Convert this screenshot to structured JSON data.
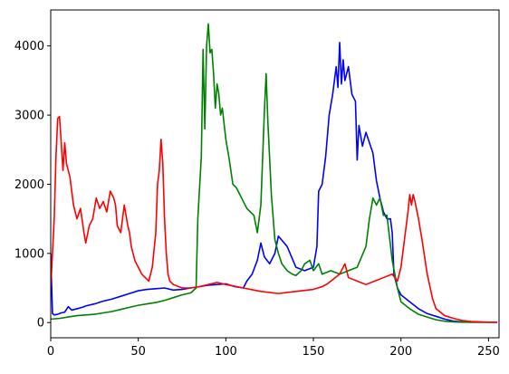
{
  "chart_data": {
    "type": "line",
    "title": "",
    "xlabel": "",
    "ylabel": "",
    "xlim": [
      0,
      256
    ],
    "ylim": [
      -220,
      4520
    ],
    "grid": false,
    "legend": "none",
    "xticks": [
      0,
      50,
      100,
      150,
      200,
      250
    ],
    "yticks": [
      0,
      1000,
      2000,
      3000,
      4000
    ],
    "series": [
      {
        "color": "#0000ff",
        "x": [
          0,
          1,
          2,
          4,
          6,
          8,
          10,
          12,
          15,
          18,
          20,
          25,
          30,
          35,
          40,
          45,
          50,
          55,
          60,
          65,
          70,
          75,
          80,
          85,
          90,
          95,
          100,
          105,
          110,
          112,
          115,
          118,
          120,
          122,
          125,
          128,
          130,
          135,
          140,
          145,
          150,
          152,
          153,
          155,
          157,
          159,
          161,
          163,
          164,
          165,
          166,
          167,
          168,
          170,
          172,
          174,
          175,
          176,
          178,
          180,
          182,
          184,
          186,
          188,
          190,
          192,
          194,
          195,
          196,
          198,
          200,
          205,
          210,
          215,
          220,
          225,
          230,
          235,
          240,
          245,
          250,
          255
        ],
        "y": [
          1000,
          130,
          110,
          120,
          140,
          150,
          230,
          180,
          200,
          220,
          240,
          270,
          310,
          340,
          380,
          420,
          460,
          480,
          490,
          500,
          470,
          480,
          500,
          520,
          540,
          550,
          560,
          520,
          500,
          600,
          700,
          900,
          1150,
          950,
          850,
          1000,
          1250,
          1100,
          800,
          750,
          800,
          1100,
          1900,
          2000,
          2400,
          3000,
          3300,
          3700,
          3400,
          4050,
          3450,
          3800,
          3500,
          3700,
          3300,
          3200,
          2350,
          2850,
          2550,
          2750,
          2600,
          2450,
          2050,
          1800,
          1600,
          1500,
          1500,
          1300,
          700,
          500,
          400,
          300,
          200,
          130,
          90,
          50,
          20,
          10,
          5,
          5,
          5,
          5
        ]
      },
      {
        "color": "#008000",
        "x": [
          0,
          5,
          10,
          15,
          20,
          25,
          30,
          35,
          40,
          45,
          50,
          55,
          60,
          65,
          70,
          75,
          80,
          83,
          84,
          86,
          87,
          88,
          89,
          90,
          91,
          92,
          93,
          94,
          95,
          96,
          97,
          98,
          100,
          102,
          104,
          106,
          108,
          110,
          112,
          114,
          116,
          118,
          120,
          122,
          123,
          124,
          126,
          128,
          130,
          132,
          135,
          138,
          140,
          143,
          145,
          148,
          150,
          153,
          155,
          160,
          165,
          170,
          175,
          180,
          182,
          184,
          186,
          188,
          190,
          192,
          195,
          198,
          200,
          205,
          210,
          215,
          220,
          225,
          230,
          235,
          240,
          245,
          250,
          255
        ],
        "y": [
          50,
          60,
          80,
          100,
          110,
          120,
          140,
          160,
          190,
          220,
          250,
          270,
          290,
          320,
          360,
          400,
          430,
          500,
          1500,
          2400,
          3950,
          2800,
          4000,
          4320,
          3900,
          3950,
          3600,
          3100,
          3450,
          3300,
          3000,
          3100,
          2650,
          2350,
          2000,
          1950,
          1850,
          1750,
          1650,
          1600,
          1550,
          1300,
          1700,
          3050,
          3600,
          2900,
          1850,
          1200,
          1000,
          850,
          750,
          700,
          680,
          750,
          850,
          900,
          750,
          850,
          700,
          750,
          700,
          750,
          800,
          1100,
          1500,
          1800,
          1700,
          1800,
          1550,
          1550,
          900,
          500,
          300,
          200,
          120,
          80,
          40,
          20,
          10,
          5,
          5,
          5,
          5,
          5
        ]
      },
      {
        "color": "#ff0000",
        "x": [
          0,
          2,
          3,
          4,
          5,
          6,
          7,
          8,
          9,
          10,
          11,
          12,
          13,
          14,
          15,
          17,
          19,
          20,
          22,
          24,
          26,
          28,
          30,
          32,
          34,
          36,
          37,
          38,
          40,
          42,
          44,
          45,
          46,
          48,
          50,
          52,
          54,
          56,
          58,
          60,
          61,
          62,
          63,
          64,
          65,
          66,
          67,
          68,
          70,
          75,
          80,
          85,
          90,
          95,
          100,
          110,
          120,
          130,
          140,
          150,
          155,
          158,
          160,
          165,
          168,
          170,
          175,
          180,
          185,
          190,
          195,
          198,
          200,
          202,
          204,
          205,
          206,
          207,
          208,
          210,
          212,
          215,
          218,
          220,
          225,
          230,
          235,
          240,
          245,
          250,
          255
        ],
        "y": [
          500,
          1500,
          2400,
          2950,
          2980,
          2600,
          2200,
          2600,
          2300,
          2200,
          2100,
          1900,
          1700,
          1600,
          1500,
          1650,
          1300,
          1150,
          1400,
          1500,
          1800,
          1650,
          1750,
          1600,
          1900,
          1800,
          1700,
          1400,
          1300,
          1700,
          1400,
          1300,
          1100,
          900,
          800,
          700,
          650,
          600,
          800,
          1300,
          2000,
          2200,
          2650,
          2300,
          1500,
          1000,
          700,
          600,
          550,
          500,
          500,
          520,
          550,
          580,
          550,
          500,
          450,
          420,
          450,
          480,
          520,
          560,
          600,
          700,
          850,
          650,
          600,
          550,
          600,
          650,
          700,
          600,
          800,
          1200,
          1600,
          1850,
          1700,
          1850,
          1750,
          1500,
          1200,
          700,
          350,
          200,
          100,
          60,
          30,
          15,
          10,
          5,
          5
        ]
      }
    ]
  }
}
